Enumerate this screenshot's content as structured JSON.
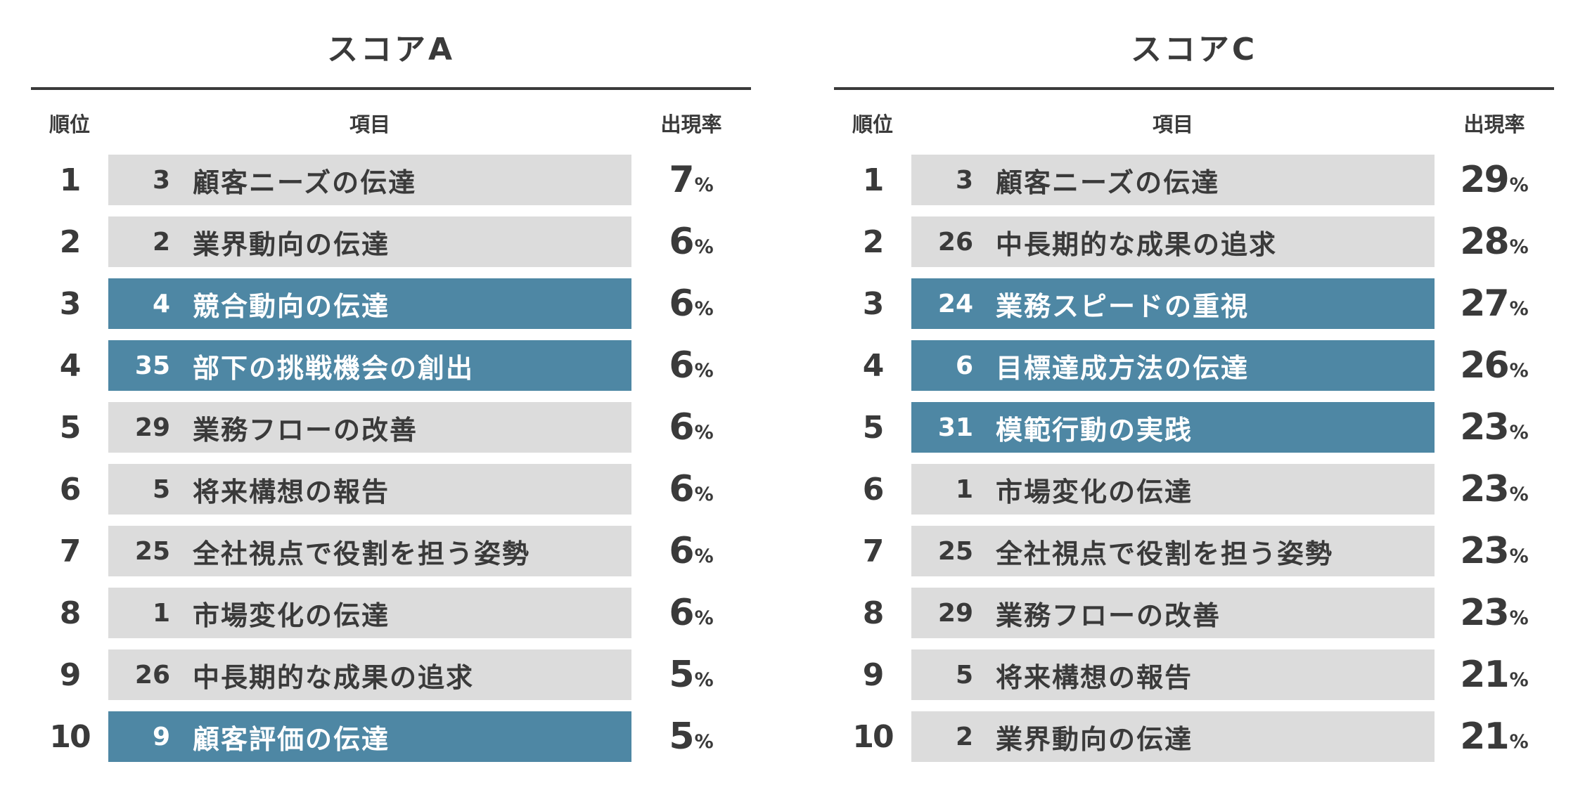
{
  "colors": {
    "highlight_row": "#4e87a4",
    "default_row": "#dcdcdc",
    "text": "#3a3a3a",
    "highlight_text": "#ffffff",
    "rule": "#3a3a3a"
  },
  "chart_data": [
    {
      "type": "table",
      "title": "スコアA",
      "columns": {
        "rank": "順位",
        "item": "項目",
        "rate": "出現率"
      },
      "rate_unit": "%",
      "rows": [
        {
          "rank": "1",
          "item_no": "3",
          "item": "顧客ニーズの伝達",
          "rate": "7",
          "highlight": false
        },
        {
          "rank": "2",
          "item_no": "2",
          "item": "業界動向の伝達",
          "rate": "6",
          "highlight": false
        },
        {
          "rank": "3",
          "item_no": "4",
          "item": "競合動向の伝達",
          "rate": "6",
          "highlight": true
        },
        {
          "rank": "4",
          "item_no": "35",
          "item": "部下の挑戦機会の創出",
          "rate": "6",
          "highlight": true
        },
        {
          "rank": "5",
          "item_no": "29",
          "item": "業務フローの改善",
          "rate": "6",
          "highlight": false
        },
        {
          "rank": "6",
          "item_no": "5",
          "item": "将来構想の報告",
          "rate": "6",
          "highlight": false
        },
        {
          "rank": "7",
          "item_no": "25",
          "item": "全社視点で役割を担う姿勢",
          "rate": "6",
          "highlight": false
        },
        {
          "rank": "8",
          "item_no": "1",
          "item": "市場変化の伝達",
          "rate": "6",
          "highlight": false
        },
        {
          "rank": "9",
          "item_no": "26",
          "item": "中長期的な成果の追求",
          "rate": "5",
          "highlight": false
        },
        {
          "rank": "10",
          "item_no": "9",
          "item": "顧客評価の伝達",
          "rate": "5",
          "highlight": true
        }
      ]
    },
    {
      "type": "table",
      "title": "スコアC",
      "columns": {
        "rank": "順位",
        "item": "項目",
        "rate": "出現率"
      },
      "rate_unit": "%",
      "rows": [
        {
          "rank": "1",
          "item_no": "3",
          "item": "顧客ニーズの伝達",
          "rate": "29",
          "highlight": false
        },
        {
          "rank": "2",
          "item_no": "26",
          "item": "中長期的な成果の追求",
          "rate": "28",
          "highlight": false
        },
        {
          "rank": "3",
          "item_no": "24",
          "item": "業務スピードの重視",
          "rate": "27",
          "highlight": true
        },
        {
          "rank": "4",
          "item_no": "6",
          "item": "目標達成方法の伝達",
          "rate": "26",
          "highlight": true
        },
        {
          "rank": "5",
          "item_no": "31",
          "item": "模範行動の実践",
          "rate": "23",
          "highlight": true
        },
        {
          "rank": "6",
          "item_no": "1",
          "item": "市場変化の伝達",
          "rate": "23",
          "highlight": false
        },
        {
          "rank": "7",
          "item_no": "25",
          "item": "全社視点で役割を担う姿勢",
          "rate": "23",
          "highlight": false
        },
        {
          "rank": "8",
          "item_no": "29",
          "item": "業務フローの改善",
          "rate": "23",
          "highlight": false
        },
        {
          "rank": "9",
          "item_no": "5",
          "item": "将来構想の報告",
          "rate": "21",
          "highlight": false
        },
        {
          "rank": "10",
          "item_no": "2",
          "item": "業界動向の伝達",
          "rate": "21",
          "highlight": false
        }
      ]
    }
  ]
}
